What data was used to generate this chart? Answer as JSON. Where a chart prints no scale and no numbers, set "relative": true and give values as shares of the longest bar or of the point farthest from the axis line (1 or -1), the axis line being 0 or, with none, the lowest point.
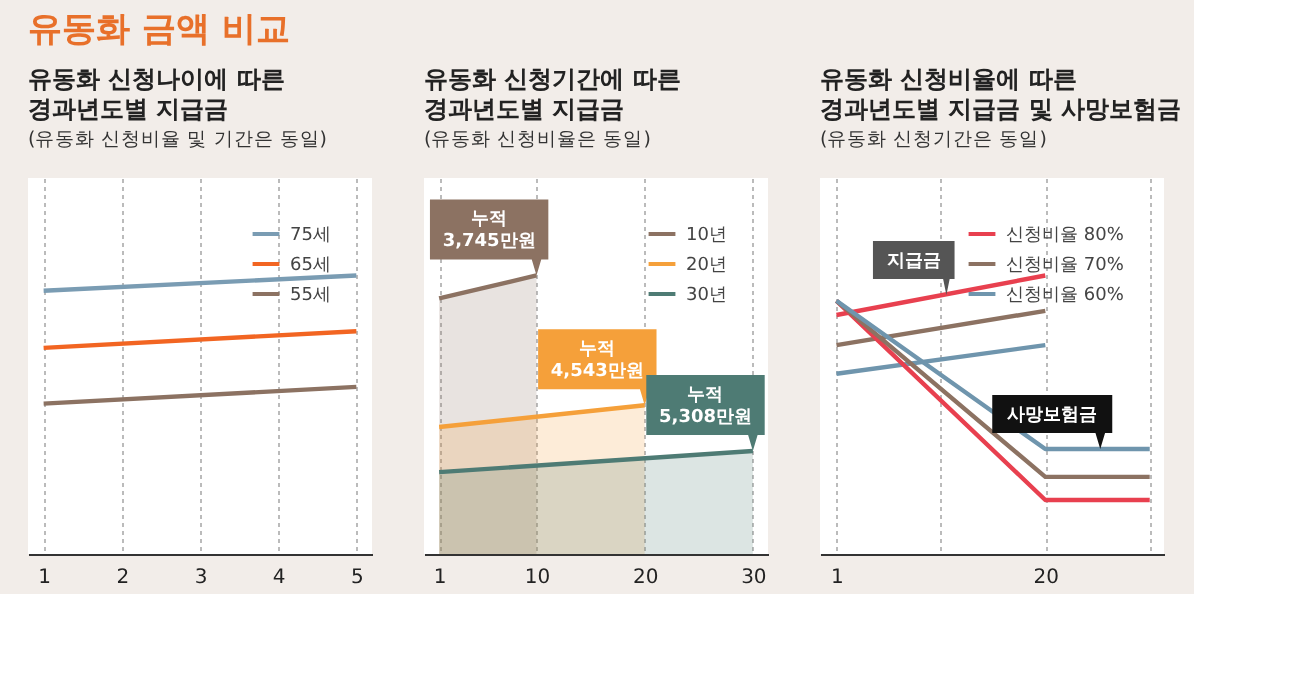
{
  "chart_data": [
    {
      "type": "other",
      "title": "유동화 금액 비교"
    },
    {
      "type": "line",
      "relative": true,
      "title": "유동화 신청나이에 따른\n경과년도별 지급금",
      "subtitle": "(유동화 신청비율 및 기간은 동일)",
      "xlim": [
        0.8,
        5.2
      ],
      "xticks": [
        1,
        2,
        3,
        4,
        5
      ],
      "grid": "x",
      "legend": "top right",
      "series": [
        {
          "name": "75세",
          "color": "#7a9cb3",
          "x": [
            1,
            5
          ],
          "values": [
            0.945,
            1.0
          ]
        },
        {
          "name": "65세",
          "color": "#f26522",
          "x": [
            1,
            5
          ],
          "values": [
            0.74,
            0.8
          ]
        },
        {
          "name": "55세",
          "color": "#8c7262",
          "x": [
            1,
            5
          ],
          "values": [
            0.54,
            0.6
          ]
        }
      ]
    },
    {
      "type": "area",
      "relative": true,
      "title": "유동화 신청기간에 따른\n경과년도별 지급금",
      "subtitle": "(유동화 신청비율은 동일)",
      "xlim": [
        -0.4,
        31.4
      ],
      "xticks": [
        1,
        10,
        20,
        30
      ],
      "grid": "x",
      "legend": "top right",
      "series": [
        {
          "name": "10년",
          "color": "#8c7262",
          "x": [
            1,
            10
          ],
          "values": [
            0.918,
            1.0
          ]
        },
        {
          "name": "20년",
          "color": "#f5a03a",
          "x": [
            1,
            20
          ],
          "values": [
            0.456,
            0.534
          ]
        },
        {
          "name": "30년",
          "color": "#4e7b74",
          "x": [
            1,
            30
          ],
          "values": [
            0.294,
            0.37
          ]
        }
      ],
      "annotations": [
        {
          "text": "누적\n3,745만원",
          "x": 10,
          "y": 1.0
        },
        {
          "text": "누적\n4,543만원",
          "x": 20,
          "y": 0.534
        },
        {
          "text": "누적\n5,308만원",
          "x": 30,
          "y": 0.37
        }
      ]
    },
    {
      "type": "line",
      "relative": true,
      "title": "유동화 신청비율에 따른\n경과년도별 지급금 및 사망보험금",
      "subtitle": "(유동화 신청기간은 동일)",
      "xlim": [
        -0.5,
        30.8
      ],
      "xticks": [
        1,
        {
          "value": 10.5,
          "label": null
        },
        20,
        {
          "value": 29.5,
          "label": null
        }
      ],
      "grid": "x",
      "legend": "top right",
      "series": [
        {
          "name": "신청비율 80%",
          "color": "#e8404f",
          "x": [
            1,
            20
          ],
          "values": [
            0.858,
            1.0
          ]
        },
        {
          "name": "신청비율 70%",
          "color": "#8c7262",
          "x": [
            1,
            20
          ],
          "values": [
            0.75,
            0.873
          ]
        },
        {
          "name": "신청비율 60%",
          "color": "#6f95ad",
          "x": [
            1,
            20
          ],
          "values": [
            0.647,
            0.75
          ]
        },
        {
          "color": "#e8404f",
          "x": [
            1,
            20,
            29.5
          ],
          "values": [
            0.909,
            0.194,
            0.194
          ]
        },
        {
          "color": "#8c7262",
          "x": [
            1,
            20,
            29.5
          ],
          "values": [
            0.909,
            0.277,
            0.277
          ]
        },
        {
          "color": "#6f95ad",
          "x": [
            1,
            20,
            29.5
          ],
          "values": [
            0.909,
            0.377,
            0.377
          ]
        }
      ],
      "annotations": [
        {
          "text": "지급금",
          "x": 11,
          "y": 0.93
        },
        {
          "text": "사망보험금",
          "x": 25,
          "y": 0.377
        }
      ]
    }
  ]
}
